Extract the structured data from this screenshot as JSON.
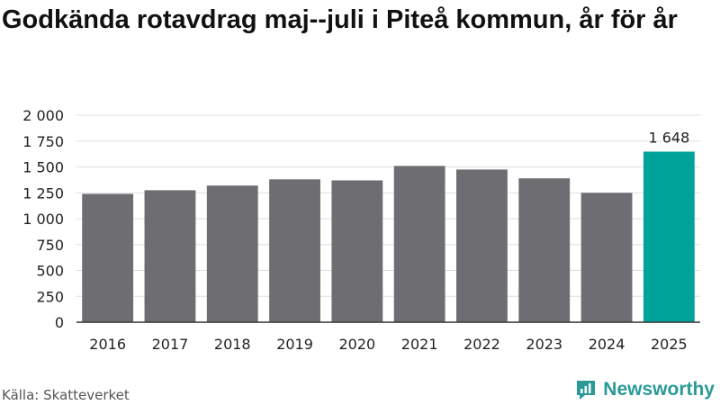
{
  "title": "Godkända rotavdrag maj--juli i Piteå kommun, år för år",
  "source": "Källa: Skatteverket",
  "brand": "Newsworthy",
  "colors": {
    "bar": "#6e6d72",
    "highlight": "#00a39a",
    "grid": "#dddddd",
    "axis": "#333333",
    "brand": "#2a9a98"
  },
  "chart_data": {
    "type": "bar",
    "title": "Godkända rotavdrag maj--juli i Piteå kommun, år för år",
    "xlabel": "",
    "ylabel": "",
    "categories": [
      "2016",
      "2017",
      "2018",
      "2019",
      "2020",
      "2021",
      "2022",
      "2023",
      "2024",
      "2025"
    ],
    "values": [
      1240,
      1275,
      1320,
      1380,
      1370,
      1510,
      1475,
      1390,
      1250,
      1648
    ],
    "highlight_index": 9,
    "value_labels": {
      "9": "1 648"
    },
    "ylim": [
      0,
      2000
    ],
    "yticks": [
      0,
      250,
      500,
      750,
      1000,
      1250,
      1500,
      1750,
      2000
    ],
    "ytick_labels": [
      "0",
      "250",
      "500",
      "750",
      "1 000",
      "1 250",
      "1 500",
      "1 750",
      "2 000"
    ],
    "grid": true,
    "legend": "none"
  }
}
